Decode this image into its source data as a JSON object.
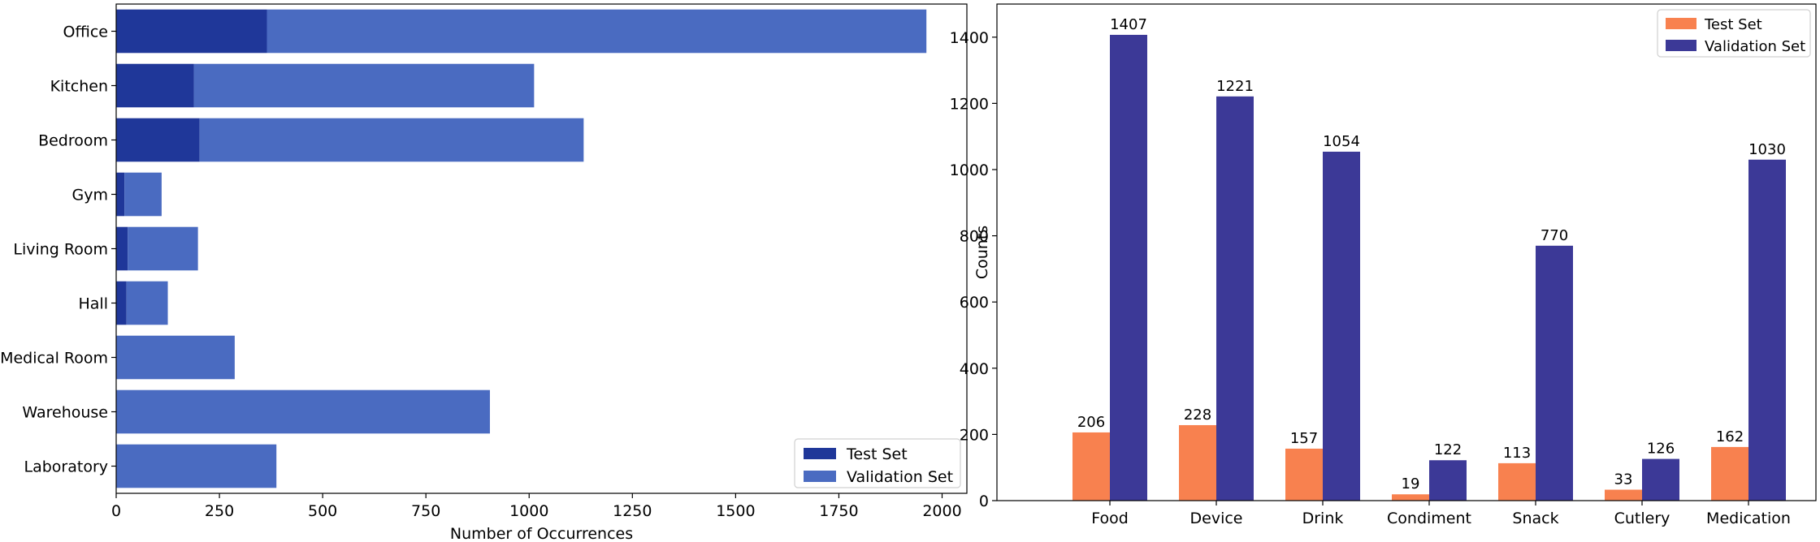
{
  "chart_data": [
    {
      "type": "bar",
      "orientation": "horizontal",
      "stacked": true,
      "categories": [
        "Office",
        "Kitchen",
        "Bedroom",
        "Gym",
        "Living Room",
        "Hall",
        "Medical Room",
        "Warehouse",
        "Laboratory"
      ],
      "series": [
        {
          "name": "Test Set",
          "values": [
            365,
            188,
            202,
            20,
            28,
            25,
            0,
            0,
            0
          ],
          "color": "#1f3799"
        },
        {
          "name": "Validation Set",
          "values": [
            1597,
            824,
            930,
            90,
            170,
            100,
            287,
            905,
            388
          ],
          "color": "#4a6bc1"
        }
      ],
      "xlabel": "Number of Occurrences",
      "ylabel": "",
      "xlim": [
        0,
        2060
      ],
      "xticks": [
        "0",
        "250",
        "500",
        "750",
        "1000",
        "1250",
        "1500",
        "1750",
        "2000"
      ],
      "legend": "bottom-right",
      "grid": false
    },
    {
      "type": "bar",
      "orientation": "vertical",
      "grouped": true,
      "categories": [
        "Food",
        "Device",
        "Drink",
        "Condiment",
        "Snack",
        "Cutlery",
        "Medication"
      ],
      "series": [
        {
          "name": "Test Set",
          "values": [
            206,
            228,
            157,
            19,
            113,
            33,
            162
          ],
          "color": "#f8814f"
        },
        {
          "name": "Validation Set",
          "values": [
            1407,
            1221,
            1054,
            122,
            770,
            126,
            1030
          ],
          "color": "#3c3997"
        }
      ],
      "data_labels": true,
      "xlabel": "",
      "ylabel": "Counts",
      "ylim": [
        0,
        1500
      ],
      "yticks": [
        "0",
        "200",
        "400",
        "600",
        "800",
        "1000",
        "1200",
        "1400"
      ],
      "legend": "top-right",
      "grid": false
    }
  ]
}
